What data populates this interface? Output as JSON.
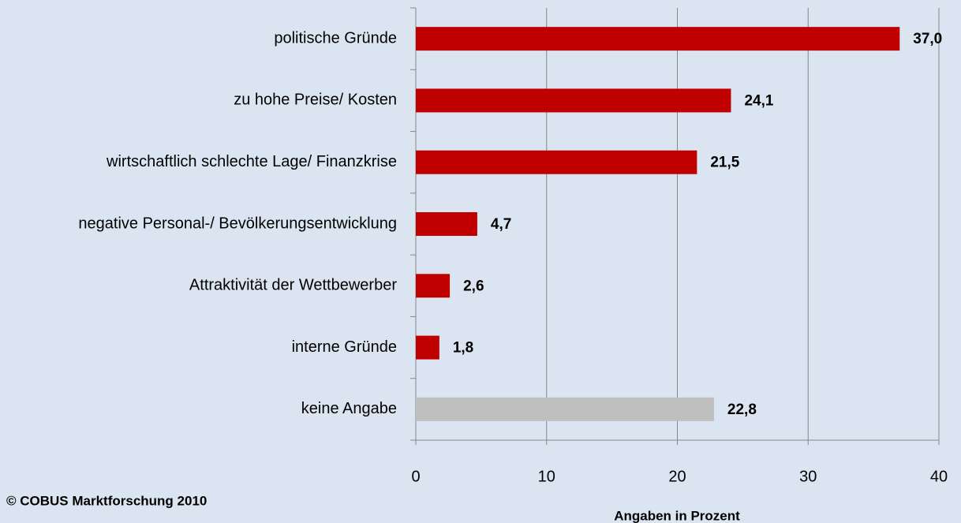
{
  "chart_data": {
    "type": "bar",
    "orientation": "horizontal",
    "categories": [
      "politische Gründe",
      "zu hohe Preise/ Kosten",
      "wirtschaftlich schlechte Lage/ Finanzkrise",
      "negative Personal-/ Bevölkerungsentwicklung",
      "Attraktivität der Wettbewerber",
      "interne Gründe",
      "keine Angabe"
    ],
    "values": [
      37.0,
      24.1,
      21.5,
      4.7,
      2.6,
      1.8,
      22.8
    ],
    "value_labels": [
      "37,0",
      "24,1",
      "21,5",
      "4,7",
      "2,6",
      "1,8",
      "22,8"
    ],
    "colors": [
      "#c00000",
      "#c00000",
      "#c00000",
      "#c00000",
      "#c00000",
      "#c00000",
      "#bfbfbf"
    ],
    "xlim": [
      0,
      40
    ],
    "xticks": [
      0,
      10,
      20,
      30,
      40
    ],
    "grid": true,
    "xlabel": "Angaben in Prozent",
    "note": "© COBUS Marktforschung 2010"
  }
}
